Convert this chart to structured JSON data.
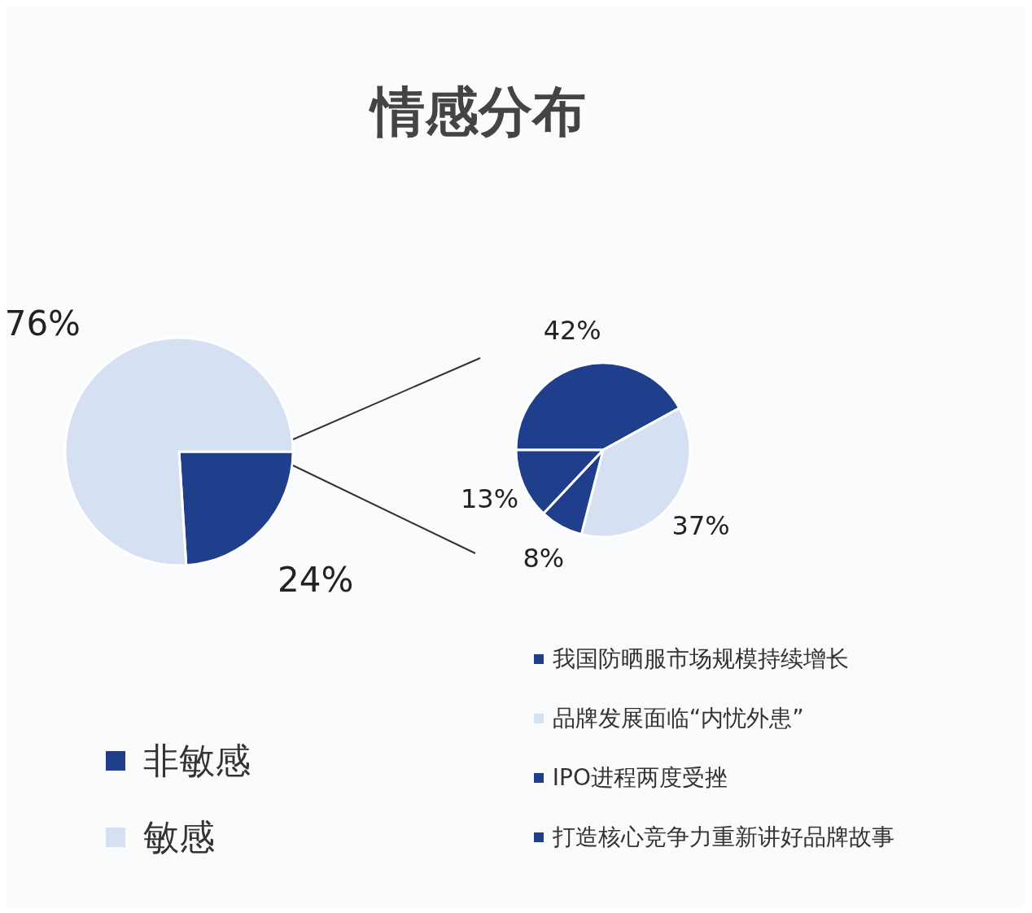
{
  "chart_data": [
    {
      "type": "pie",
      "title": "情感分布",
      "categories": [
        "非敏感",
        "敏感"
      ],
      "values": [
        24,
        76
      ],
      "colors": [
        "#1f3f8c",
        "#d5e0f3"
      ],
      "value_labels": [
        "24%",
        "76%"
      ],
      "legend": "bottom left"
    },
    {
      "type": "pie",
      "categories": [
        "我国防晒服市场规模持续增长",
        "品牌发展面临“内忧外患”",
        "IPO进程两度受挫",
        "打造核心竞争力重新讲好品牌故事"
      ],
      "values": [
        42,
        37,
        8,
        13
      ],
      "colors": [
        "#1f3f8c",
        "#d5e0f3",
        "#1f3f8c",
        "#1f3f8c"
      ],
      "value_labels": [
        "42%",
        "37%",
        "8%",
        "13%"
      ],
      "legend": "bottom"
    }
  ]
}
